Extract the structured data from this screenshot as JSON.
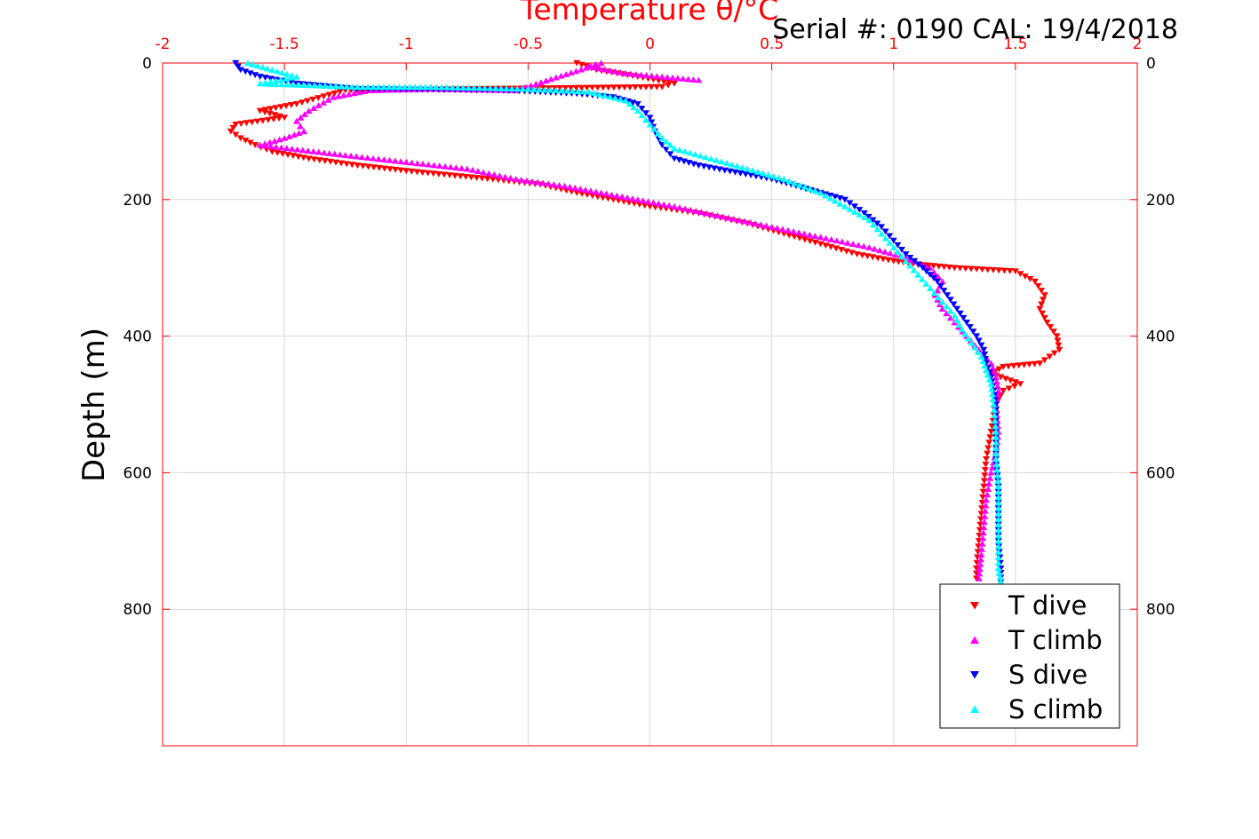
{
  "chart_data": {
    "type": "scatter",
    "title": "",
    "xlabel": "Temperature θ/°C",
    "xlabel_color": "#ff0000",
    "ylabel": "Depth (m)",
    "annotation": "Serial #: 0190  CAL: 19/4/2018",
    "xlim": [
      -2,
      2
    ],
    "ylim": [
      1000,
      0
    ],
    "y_reversed": true,
    "x_axis_position": "top",
    "x_ticks": [
      -2,
      -1.5,
      -1,
      -0.5,
      0,
      0.5,
      1,
      1.5,
      2
    ],
    "x_tick_labels": [
      "-2",
      "-1.5",
      "-1",
      "-0.5",
      "0",
      "0.5",
      "1",
      "1.5",
      "2"
    ],
    "y_ticks": [
      0,
      200,
      400,
      600,
      800
    ],
    "y_tick_labels": [
      "0",
      "200",
      "400",
      "600",
      "800"
    ],
    "grid": true,
    "legend_position": "bottom-right",
    "series": [
      {
        "name": "T dive",
        "color": "#ff0000",
        "marker": "triangle-down",
        "points": [
          [
            -0.3,
            0
          ],
          [
            -0.22,
            10
          ],
          [
            -0.05,
            20
          ],
          [
            0.1,
            30
          ],
          [
            0.05,
            35
          ],
          [
            -1.25,
            40
          ],
          [
            -1.45,
            60
          ],
          [
            -1.6,
            70
          ],
          [
            -1.5,
            80
          ],
          [
            -1.7,
            90
          ],
          [
            -1.72,
            100
          ],
          [
            -1.68,
            110
          ],
          [
            -1.62,
            120
          ],
          [
            -1.55,
            130
          ],
          [
            -1.4,
            140
          ],
          [
            -1.2,
            150
          ],
          [
            -1.0,
            158
          ],
          [
            -0.8,
            165
          ],
          [
            -0.6,
            172
          ],
          [
            -0.45,
            178
          ],
          [
            -0.3,
            190
          ],
          [
            -0.15,
            200
          ],
          [
            0.0,
            210
          ],
          [
            0.2,
            220
          ],
          [
            0.4,
            235
          ],
          [
            0.55,
            250
          ],
          [
            0.7,
            265
          ],
          [
            0.85,
            280
          ],
          [
            1.0,
            290
          ],
          [
            1.1,
            295
          ],
          [
            1.25,
            300
          ],
          [
            1.5,
            305
          ],
          [
            1.58,
            320
          ],
          [
            1.62,
            340
          ],
          [
            1.6,
            360
          ],
          [
            1.63,
            380
          ],
          [
            1.67,
            400
          ],
          [
            1.68,
            420
          ],
          [
            1.6,
            440
          ],
          [
            1.45,
            445
          ],
          [
            1.4,
            455
          ],
          [
            1.52,
            470
          ],
          [
            1.45,
            480
          ],
          [
            1.42,
            500
          ],
          [
            1.4,
            540
          ],
          [
            1.38,
            580
          ],
          [
            1.37,
            620
          ],
          [
            1.36,
            660
          ],
          [
            1.35,
            700
          ],
          [
            1.34,
            740
          ],
          [
            1.34,
            755
          ]
        ]
      },
      {
        "name": "T climb",
        "color": "#ff00ff",
        "marker": "triangle-up",
        "points": [
          [
            0.2,
            25
          ],
          [
            0.05,
            20
          ],
          [
            -0.1,
            15
          ],
          [
            -0.25,
            5
          ],
          [
            -0.2,
            0
          ],
          [
            -0.55,
            40
          ],
          [
            -0.9,
            38
          ],
          [
            -1.15,
            40
          ],
          [
            -1.3,
            50
          ],
          [
            -1.4,
            70
          ],
          [
            -1.45,
            85
          ],
          [
            -1.42,
            100
          ],
          [
            -1.5,
            110
          ],
          [
            -1.6,
            120
          ],
          [
            -1.25,
            135
          ],
          [
            -1.0,
            145
          ],
          [
            -0.75,
            155
          ],
          [
            -0.55,
            170
          ],
          [
            -0.35,
            180
          ],
          [
            -0.2,
            190
          ],
          [
            -0.05,
            200
          ],
          [
            0.1,
            210
          ],
          [
            0.3,
            225
          ],
          [
            0.5,
            240
          ],
          [
            0.7,
            255
          ],
          [
            0.9,
            270
          ],
          [
            1.05,
            285
          ],
          [
            1.15,
            300
          ],
          [
            1.2,
            320
          ],
          [
            1.17,
            340
          ],
          [
            1.2,
            360
          ],
          [
            1.25,
            380
          ],
          [
            1.3,
            400
          ],
          [
            1.35,
            420
          ],
          [
            1.4,
            440
          ],
          [
            1.42,
            460
          ],
          [
            1.43,
            480
          ],
          [
            1.42,
            500
          ],
          [
            1.43,
            540
          ],
          [
            1.42,
            570
          ],
          [
            1.4,
            600
          ],
          [
            1.38,
            640
          ],
          [
            1.37,
            680
          ],
          [
            1.36,
            720
          ],
          [
            1.35,
            755
          ]
        ]
      },
      {
        "name": "S dive",
        "color": "#0000ff",
        "marker": "triangle-down",
        "points": [
          [
            -1.7,
            0
          ],
          [
            -1.68,
            10
          ],
          [
            -1.6,
            20
          ],
          [
            -1.45,
            30
          ],
          [
            -1.2,
            38
          ],
          [
            -0.6,
            40
          ],
          [
            -0.3,
            45
          ],
          [
            -0.15,
            50
          ],
          [
            -0.05,
            60
          ],
          [
            0.0,
            80
          ],
          [
            0.02,
            100
          ],
          [
            0.05,
            120
          ],
          [
            0.1,
            140
          ],
          [
            0.2,
            150
          ],
          [
            0.35,
            160
          ],
          [
            0.5,
            170
          ],
          [
            0.6,
            180
          ],
          [
            0.7,
            190
          ],
          [
            0.8,
            200
          ],
          [
            0.88,
            220
          ],
          [
            0.95,
            240
          ],
          [
            1.0,
            260
          ],
          [
            1.05,
            280
          ],
          [
            1.12,
            300
          ],
          [
            1.18,
            320
          ],
          [
            1.22,
            340
          ],
          [
            1.26,
            360
          ],
          [
            1.3,
            380
          ],
          [
            1.34,
            400
          ],
          [
            1.37,
            420
          ],
          [
            1.38,
            440
          ],
          [
            1.4,
            460
          ],
          [
            1.41,
            480
          ],
          [
            1.42,
            500
          ],
          [
            1.42,
            540
          ],
          [
            1.42,
            580
          ],
          [
            1.43,
            620
          ],
          [
            1.43,
            660
          ],
          [
            1.43,
            700
          ],
          [
            1.44,
            740
          ],
          [
            1.44,
            760
          ]
        ]
      },
      {
        "name": "S climb",
        "color": "#00ffff",
        "marker": "triangle-up",
        "points": [
          [
            -1.65,
            0
          ],
          [
            -1.55,
            10
          ],
          [
            -1.45,
            20
          ],
          [
            -1.6,
            30
          ],
          [
            -1.2,
            35
          ],
          [
            -0.9,
            35
          ],
          [
            -0.5,
            38
          ],
          [
            -0.25,
            42
          ],
          [
            -0.1,
            55
          ],
          [
            -0.05,
            70
          ],
          [
            0.0,
            90
          ],
          [
            0.05,
            110
          ],
          [
            0.1,
            125
          ],
          [
            0.25,
            140
          ],
          [
            0.4,
            155
          ],
          [
            0.55,
            170
          ],
          [
            0.7,
            190
          ],
          [
            0.8,
            210
          ],
          [
            0.9,
            230
          ],
          [
            0.95,
            250
          ],
          [
            1.0,
            270
          ],
          [
            1.05,
            290
          ],
          [
            1.1,
            310
          ],
          [
            1.15,
            330
          ],
          [
            1.2,
            350
          ],
          [
            1.25,
            370
          ],
          [
            1.28,
            390
          ],
          [
            1.32,
            410
          ],
          [
            1.36,
            430
          ],
          [
            1.38,
            450
          ],
          [
            1.4,
            470
          ],
          [
            1.41,
            500
          ],
          [
            1.42,
            540
          ],
          [
            1.42,
            580
          ],
          [
            1.43,
            620
          ],
          [
            1.43,
            660
          ],
          [
            1.43,
            700
          ],
          [
            1.43,
            740
          ],
          [
            1.44,
            760
          ]
        ]
      }
    ]
  }
}
